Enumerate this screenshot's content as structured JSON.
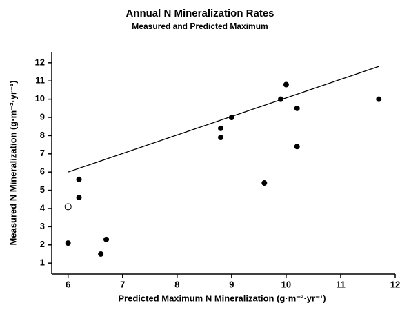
{
  "chart_data": {
    "type": "scatter",
    "title": "Annual N Mineralization Rates",
    "subtitle": "Measured and Predicted Maximum",
    "x_label": "Predicted Maximum N Mineralization (g·m⁻²·yr⁻¹)",
    "y_label": "Measured N Mineralization (g·m⁻²·yr⁻¹)",
    "xlim": [
      5.7,
      12
    ],
    "xticks": [
      6,
      7,
      8,
      9,
      10,
      11,
      12
    ],
    "ylim": [
      0.4,
      12.6
    ],
    "yticks": [
      1,
      2,
      3,
      4,
      5,
      6,
      7,
      8,
      9,
      10,
      11,
      12
    ],
    "series": [
      {
        "marker": "filled",
        "color": "#000000",
        "x": [
          6.0,
          6.2,
          6.2,
          6.6,
          6.7,
          8.8,
          8.8,
          9.0,
          9.6,
          9.9,
          10.0,
          10.2,
          10.2,
          11.7
        ],
        "values": [
          2.1,
          5.6,
          4.6,
          1.5,
          2.3,
          8.4,
          7.9,
          9.0,
          5.4,
          10.0,
          10.8,
          9.5,
          7.4,
          10.0
        ]
      },
      {
        "marker": "open",
        "color": "#000000",
        "x": [
          6.0
        ],
        "values": [
          4.1
        ]
      }
    ],
    "line": {
      "color": "#000000",
      "x": [
        6.0,
        11.7
      ],
      "values": [
        6.0,
        11.8
      ]
    }
  }
}
